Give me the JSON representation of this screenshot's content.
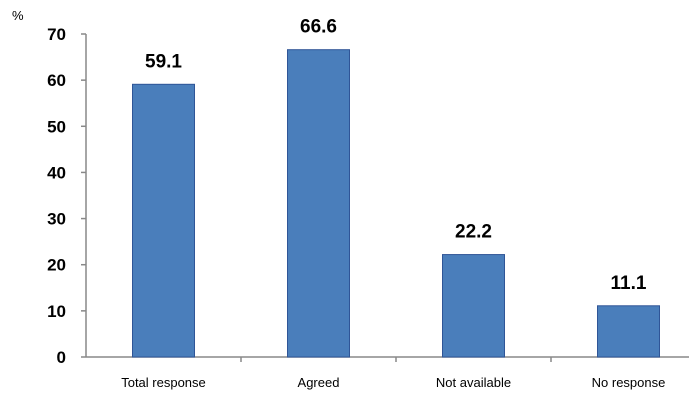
{
  "chart_data": {
    "type": "bar",
    "title": "",
    "xlabel": "",
    "ylabel": "%",
    "categories": [
      "Total response",
      "Agreed",
      "Not available",
      "No response"
    ],
    "values": [
      59.1,
      66.6,
      22.2,
      11.1
    ],
    "value_labels": [
      "59.1",
      "66.6",
      "22.2",
      "11.1"
    ],
    "ylim": [
      0,
      70
    ],
    "yticks": [
      0,
      10,
      20,
      30,
      40,
      50,
      60,
      70
    ],
    "ytick_labels": [
      "0",
      "10",
      "20",
      "30",
      "40",
      "50",
      "60",
      "70"
    ],
    "grid": false,
    "legend": "none",
    "bar_color": "#4a7ebb",
    "bar_edge_color": "#2f5597"
  }
}
